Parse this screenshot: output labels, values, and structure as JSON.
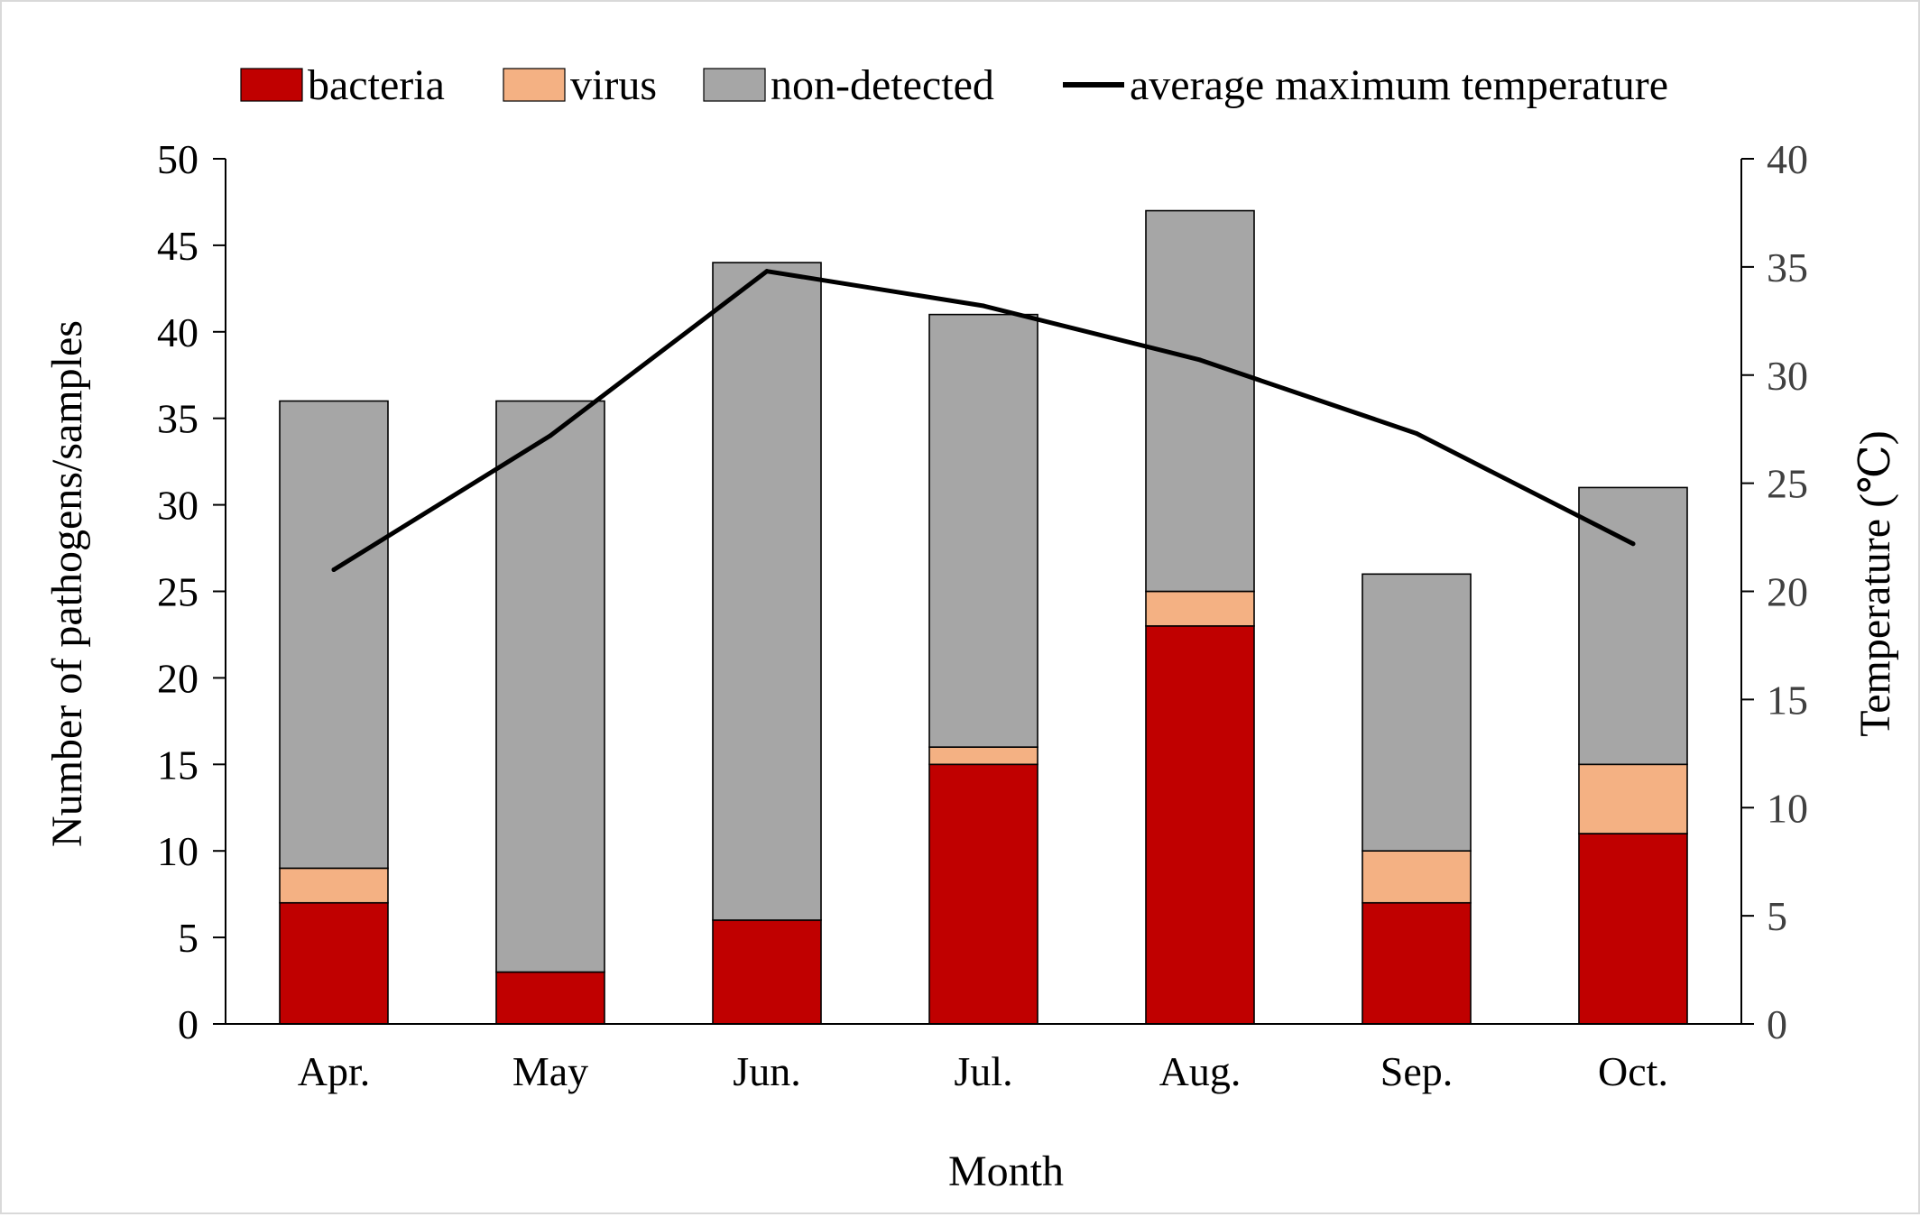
{
  "chart_data": {
    "type": "bar",
    "stacked": true,
    "categories": [
      "Apr.",
      "May",
      "Jun.",
      "Jul.",
      "Aug.",
      "Sep.",
      "Oct."
    ],
    "series": [
      {
        "name": "bacteria",
        "values": [
          7,
          3,
          6,
          15,
          23,
          7,
          11
        ],
        "color": "#C00000"
      },
      {
        "name": "virus",
        "values": [
          2,
          0,
          0,
          1,
          2,
          3,
          4
        ],
        "color": "#F4B183"
      },
      {
        "name": "non-detected",
        "values": [
          27,
          33,
          38,
          25,
          22,
          16,
          16
        ],
        "color": "#A6A6A6"
      }
    ],
    "line_series": {
      "name": "average maximum temperature",
      "values": [
        21.0,
        27.2,
        34.8,
        33.2,
        30.7,
        27.3,
        22.2
      ],
      "axis": "right",
      "color": "#000000"
    },
    "xlabel": "Month",
    "ylabel": "Number of pathogens/samples",
    "y2label": "Temperature (℃)",
    "ylim": [
      0,
      50
    ],
    "y2lim": [
      0,
      40
    ],
    "yticks": [
      "0",
      "5",
      "10",
      "15",
      "20",
      "25",
      "30",
      "35",
      "40",
      "45",
      "50"
    ],
    "y2ticks": [
      "0",
      "5",
      "10",
      "15",
      "20",
      "25",
      "30",
      "35",
      "40"
    ],
    "legend_position": "top",
    "grid": false
  }
}
